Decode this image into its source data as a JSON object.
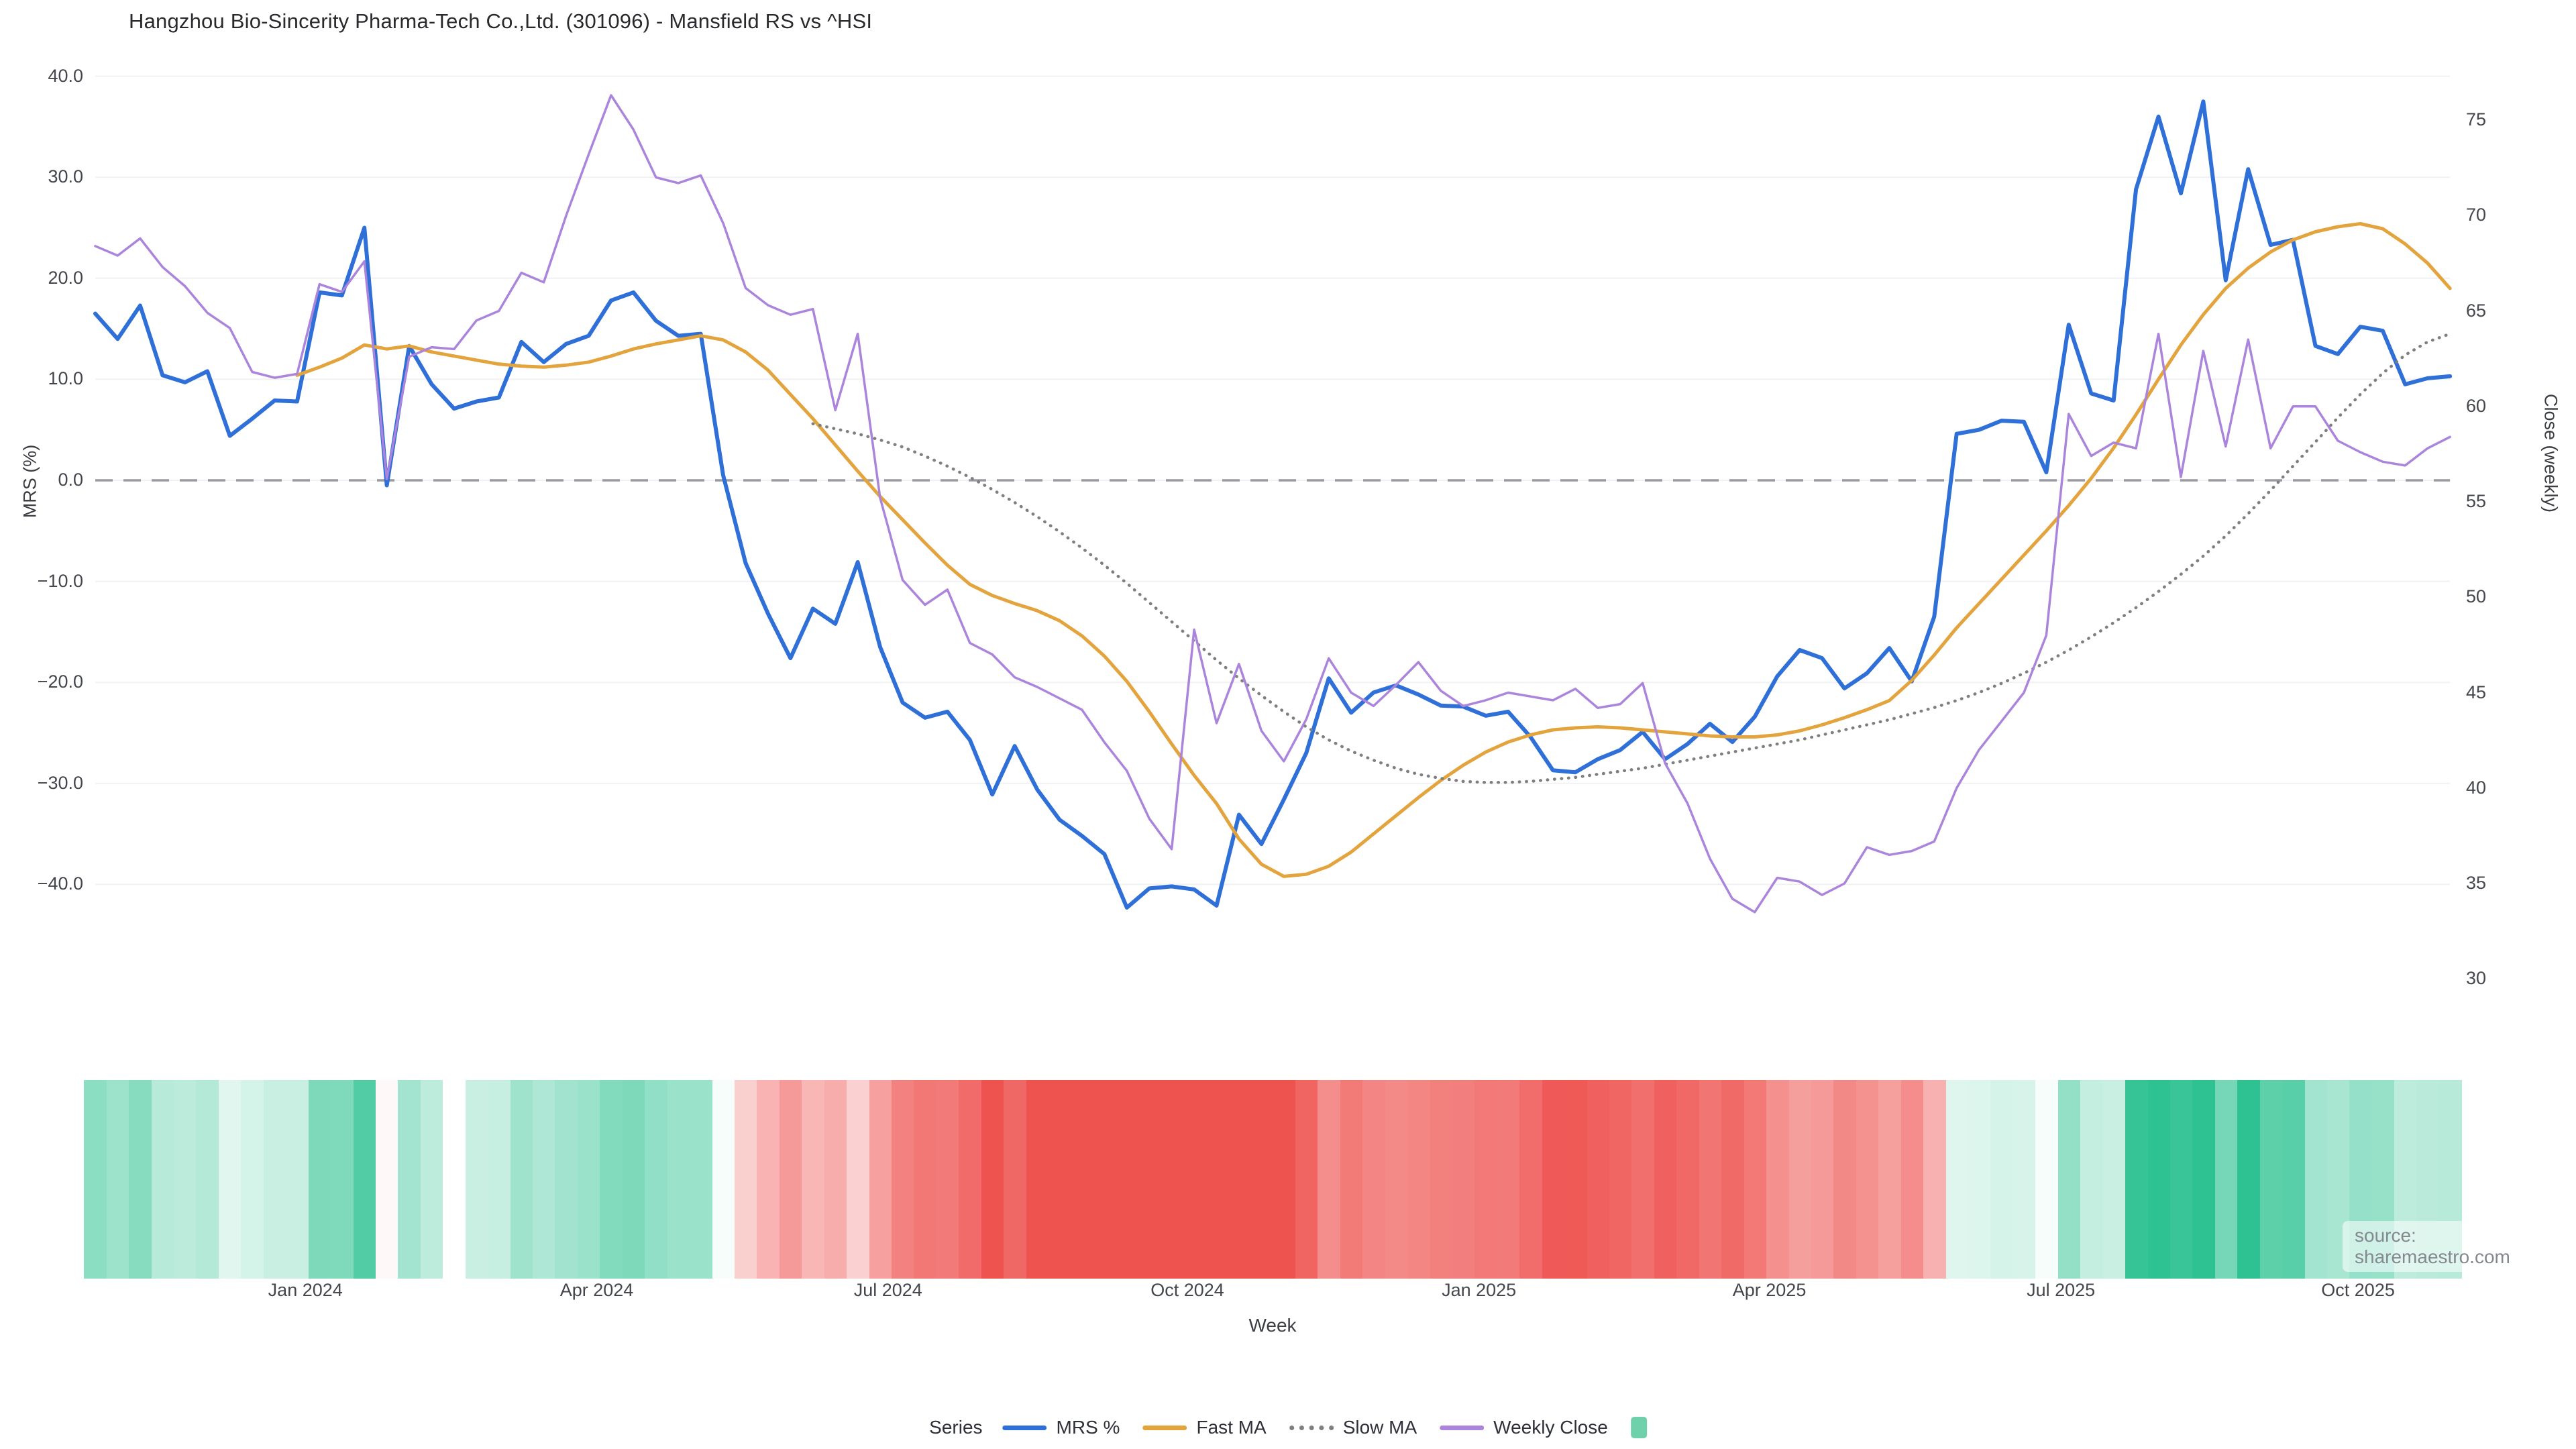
{
  "title": "Hangzhou Bio-Sincerity Pharma-Tech Co.,Ltd. (301096) - Mansfield RS vs ^HSI",
  "source_note": "source: sharemaestro.com",
  "colors": {
    "mrs_line": "#2f6fd8",
    "fast_ma_line": "#e3a33d",
    "slow_ma_line": "#7f7f7f",
    "weekly_close_line": "#ab84dc",
    "zero_dash_line": "#9a9aa2",
    "gridline": "#f0f1f4",
    "heat_positive": "#2ec292",
    "heat_negative": "#ee5350",
    "legend_swatch_green": "#6fd1ab"
  },
  "legend": {
    "title": "Series",
    "items": [
      {
        "label": "MRS %",
        "swatch": "line",
        "color": "#2f6fd8"
      },
      {
        "label": "Fast MA",
        "swatch": "line",
        "color": "#e3a33d"
      },
      {
        "label": "Slow MA",
        "swatch": "dotted",
        "color": "#7f7f7f"
      },
      {
        "label": "Weekly Close",
        "swatch": "line",
        "color": "#ab84dc"
      },
      {
        "label": "",
        "swatch": "square",
        "color": "#6fd1ab"
      }
    ]
  },
  "chart_data": {
    "type": "line",
    "title": "Hangzhou Bio-Sincerity Pharma-Tech Co.,Ltd. (301096) - Mansfield RS vs ^HSI",
    "x_axis": {
      "label": "Week",
      "unit": "weekly points, Nov 2023 - Nov 2025",
      "n_points": 106,
      "ticks": [
        {
          "label": "Jan 2024",
          "week": 9.37
        },
        {
          "label": "Apr 2024",
          "week": 22.36
        },
        {
          "label": "Jul 2024",
          "week": 35.35
        },
        {
          "label": "Oct 2024",
          "week": 48.7
        },
        {
          "label": "Jan 2025",
          "week": 61.7
        },
        {
          "label": "Apr 2025",
          "week": 74.65
        },
        {
          "label": "Jul 2025",
          "week": 87.65
        },
        {
          "label": "Oct 2025",
          "week": 100.9
        }
      ]
    },
    "left_axis": {
      "label": "MRS (%)",
      "ticks": [
        40.0,
        30.0,
        20.0,
        10.0,
        0.0,
        -10.0,
        -20.0,
        -30.0,
        -40.0
      ],
      "zero_line_dashed": true
    },
    "right_axis": {
      "label": "Close (weekly)",
      "ticks": [
        75,
        70,
        65,
        60,
        55,
        50,
        45,
        40,
        35,
        30
      ]
    },
    "grid": "horizontal only, left-axis ticks",
    "legend_position": "bottom center",
    "series": [
      {
        "name": "MRS %",
        "axis": "left",
        "style": "solid",
        "color": "#2f6fd8",
        "values": [
          16.5,
          14.0,
          17.3,
          10.4,
          9.7,
          10.8,
          4.4,
          6.1,
          7.9,
          7.8,
          18.6,
          18.3,
          25.0,
          -0.5,
          13.3,
          9.5,
          7.1,
          7.8,
          8.2,
          13.7,
          11.7,
          13.5,
          14.3,
          17.8,
          18.6,
          15.8,
          14.3,
          14.5,
          0.5,
          -8.2,
          -13.2,
          -17.6,
          -12.7,
          -14.2,
          -8.1,
          -16.5,
          -22.0,
          -23.5,
          -22.9,
          -25.7,
          -31.1,
          -26.3,
          -30.6,
          -33.6,
          -35.2,
          -37.0,
          -42.3,
          -40.4,
          -40.2,
          -40.5,
          -42.1,
          -33.1,
          -36.0,
          -31.6,
          -27.0,
          -19.6,
          -23.0,
          -21.0,
          -20.3,
          -21.2,
          -22.3,
          -22.4,
          -23.3,
          -22.9,
          -25.4,
          -28.7,
          -28.9,
          -27.6,
          -26.7,
          -24.9,
          -27.6,
          -26.1,
          -24.1,
          -25.9,
          -23.4,
          -19.4,
          -16.8,
          -17.6,
          -20.6,
          -19.1,
          -16.6,
          -19.9,
          -13.5,
          4.6,
          5.0,
          5.9,
          5.8,
          0.8,
          15.4,
          8.6,
          7.9,
          28.8,
          36.0,
          28.4,
          37.5,
          19.8,
          30.8,
          23.3,
          23.8,
          13.3,
          12.5,
          15.2,
          14.8,
          9.5,
          10.1,
          10.3
        ]
      },
      {
        "name": "Fast MA",
        "axis": "left",
        "style": "solid",
        "color": "#e3a33d",
        "values": [
          null,
          null,
          null,
          null,
          null,
          null,
          null,
          null,
          null,
          10.4,
          11.2,
          12.1,
          13.4,
          13.0,
          13.3,
          12.7,
          12.3,
          11.9,
          11.5,
          11.3,
          11.2,
          11.4,
          11.7,
          12.3,
          13.0,
          13.5,
          13.9,
          14.3,
          13.9,
          12.7,
          10.9,
          8.5,
          6.1,
          3.5,
          0.9,
          -1.6,
          -3.9,
          -6.2,
          -8.4,
          -10.3,
          -11.4,
          -12.2,
          -12.9,
          -13.9,
          -15.4,
          -17.4,
          -19.9,
          -22.9,
          -26.1,
          -29.2,
          -32.0,
          -35.5,
          -38.0,
          -39.2,
          -39.0,
          -38.2,
          -36.8,
          -35.0,
          -33.2,
          -31.4,
          -29.7,
          -28.2,
          -26.9,
          -25.9,
          -25.2,
          -24.7,
          -24.5,
          -24.4,
          -24.5,
          -24.7,
          -24.9,
          -25.1,
          -25.3,
          -25.4,
          -25.4,
          -25.2,
          -24.8,
          -24.2,
          -23.5,
          -22.7,
          -21.8,
          -19.8,
          -17.3,
          -14.6,
          -12.2,
          -9.8,
          -7.4,
          -5.0,
          -2.5,
          0.2,
          3.2,
          6.5,
          10.0,
          13.4,
          16.4,
          19.0,
          21.0,
          22.6,
          23.8,
          24.6,
          25.1,
          25.4,
          24.9,
          23.4,
          21.5,
          19.0
        ]
      },
      {
        "name": "Slow MA",
        "axis": "left",
        "style": "dotted",
        "color": "#7f7f7f",
        "values": [
          null,
          null,
          null,
          null,
          null,
          null,
          null,
          null,
          null,
          null,
          null,
          null,
          null,
          null,
          null,
          null,
          null,
          null,
          null,
          null,
          null,
          null,
          null,
          null,
          null,
          null,
          null,
          null,
          null,
          null,
          null,
          null,
          5.6,
          5.1,
          4.6,
          4.0,
          3.3,
          2.4,
          1.4,
          0.3,
          -0.9,
          -2.2,
          -3.6,
          -5.1,
          -6.7,
          -8.4,
          -10.2,
          -12.1,
          -14.0,
          -15.9,
          -17.8,
          -19.6,
          -21.3,
          -22.9,
          -24.4,
          -25.7,
          -26.8,
          -27.7,
          -28.5,
          -29.1,
          -29.5,
          -29.8,
          -29.9,
          -29.9,
          -29.8,
          -29.6,
          -29.4,
          -29.1,
          -28.8,
          -28.5,
          -28.1,
          -27.7,
          -27.3,
          -26.9,
          -26.5,
          -26.1,
          -25.7,
          -25.2,
          -24.7,
          -24.2,
          -23.7,
          -23.1,
          -22.5,
          -21.8,
          -21.0,
          -20.1,
          -19.1,
          -18.0,
          -16.8,
          -15.5,
          -14.1,
          -12.6,
          -11.0,
          -9.3,
          -7.5,
          -5.5,
          -3.3,
          -1.0,
          1.4,
          3.8,
          6.2,
          8.5,
          10.6,
          12.4,
          13.7,
          14.5
        ]
      },
      {
        "name": "Weekly Close",
        "axis": "right",
        "style": "solid",
        "color": "#ab84dc",
        "values": [
          68.4,
          67.9,
          68.8,
          67.3,
          66.3,
          64.9,
          64.1,
          61.8,
          61.5,
          61.7,
          66.4,
          66.0,
          67.6,
          56.2,
          62.6,
          63.1,
          63.0,
          64.5,
          65.0,
          67.0,
          66.5,
          70.0,
          73.2,
          76.3,
          74.5,
          72.0,
          71.7,
          72.1,
          69.6,
          66.2,
          65.3,
          64.8,
          65.1,
          59.8,
          63.8,
          55.2,
          50.9,
          49.6,
          50.4,
          47.6,
          47.0,
          45.8,
          45.3,
          44.7,
          44.1,
          42.4,
          40.9,
          38.4,
          36.8,
          48.3,
          43.4,
          46.5,
          43.0,
          41.4,
          43.6,
          46.8,
          45.0,
          44.3,
          45.4,
          46.6,
          45.1,
          44.3,
          44.6,
          45.0,
          44.8,
          44.6,
          45.2,
          44.2,
          44.4,
          45.5,
          41.3,
          39.2,
          36.3,
          34.2,
          33.5,
          35.3,
          35.1,
          34.4,
          35.0,
          36.9,
          36.5,
          36.7,
          37.2,
          40.0,
          42.0,
          43.5,
          45.0,
          48.0,
          59.6,
          57.4,
          58.1,
          57.8,
          63.8,
          56.3,
          62.9,
          57.9,
          63.5,
          57.8,
          60.0,
          60.0,
          58.2,
          57.6,
          57.1,
          56.9,
          57.8,
          58.4
        ]
      }
    ],
    "heatmap_strip": {
      "description": "bottom color strip, one cell per week, green for positive MRS, red for negative MRS, intensity proportional to |MRS|",
      "values_follow_series": "MRS %",
      "missing_weeks": [
        16
      ]
    }
  }
}
